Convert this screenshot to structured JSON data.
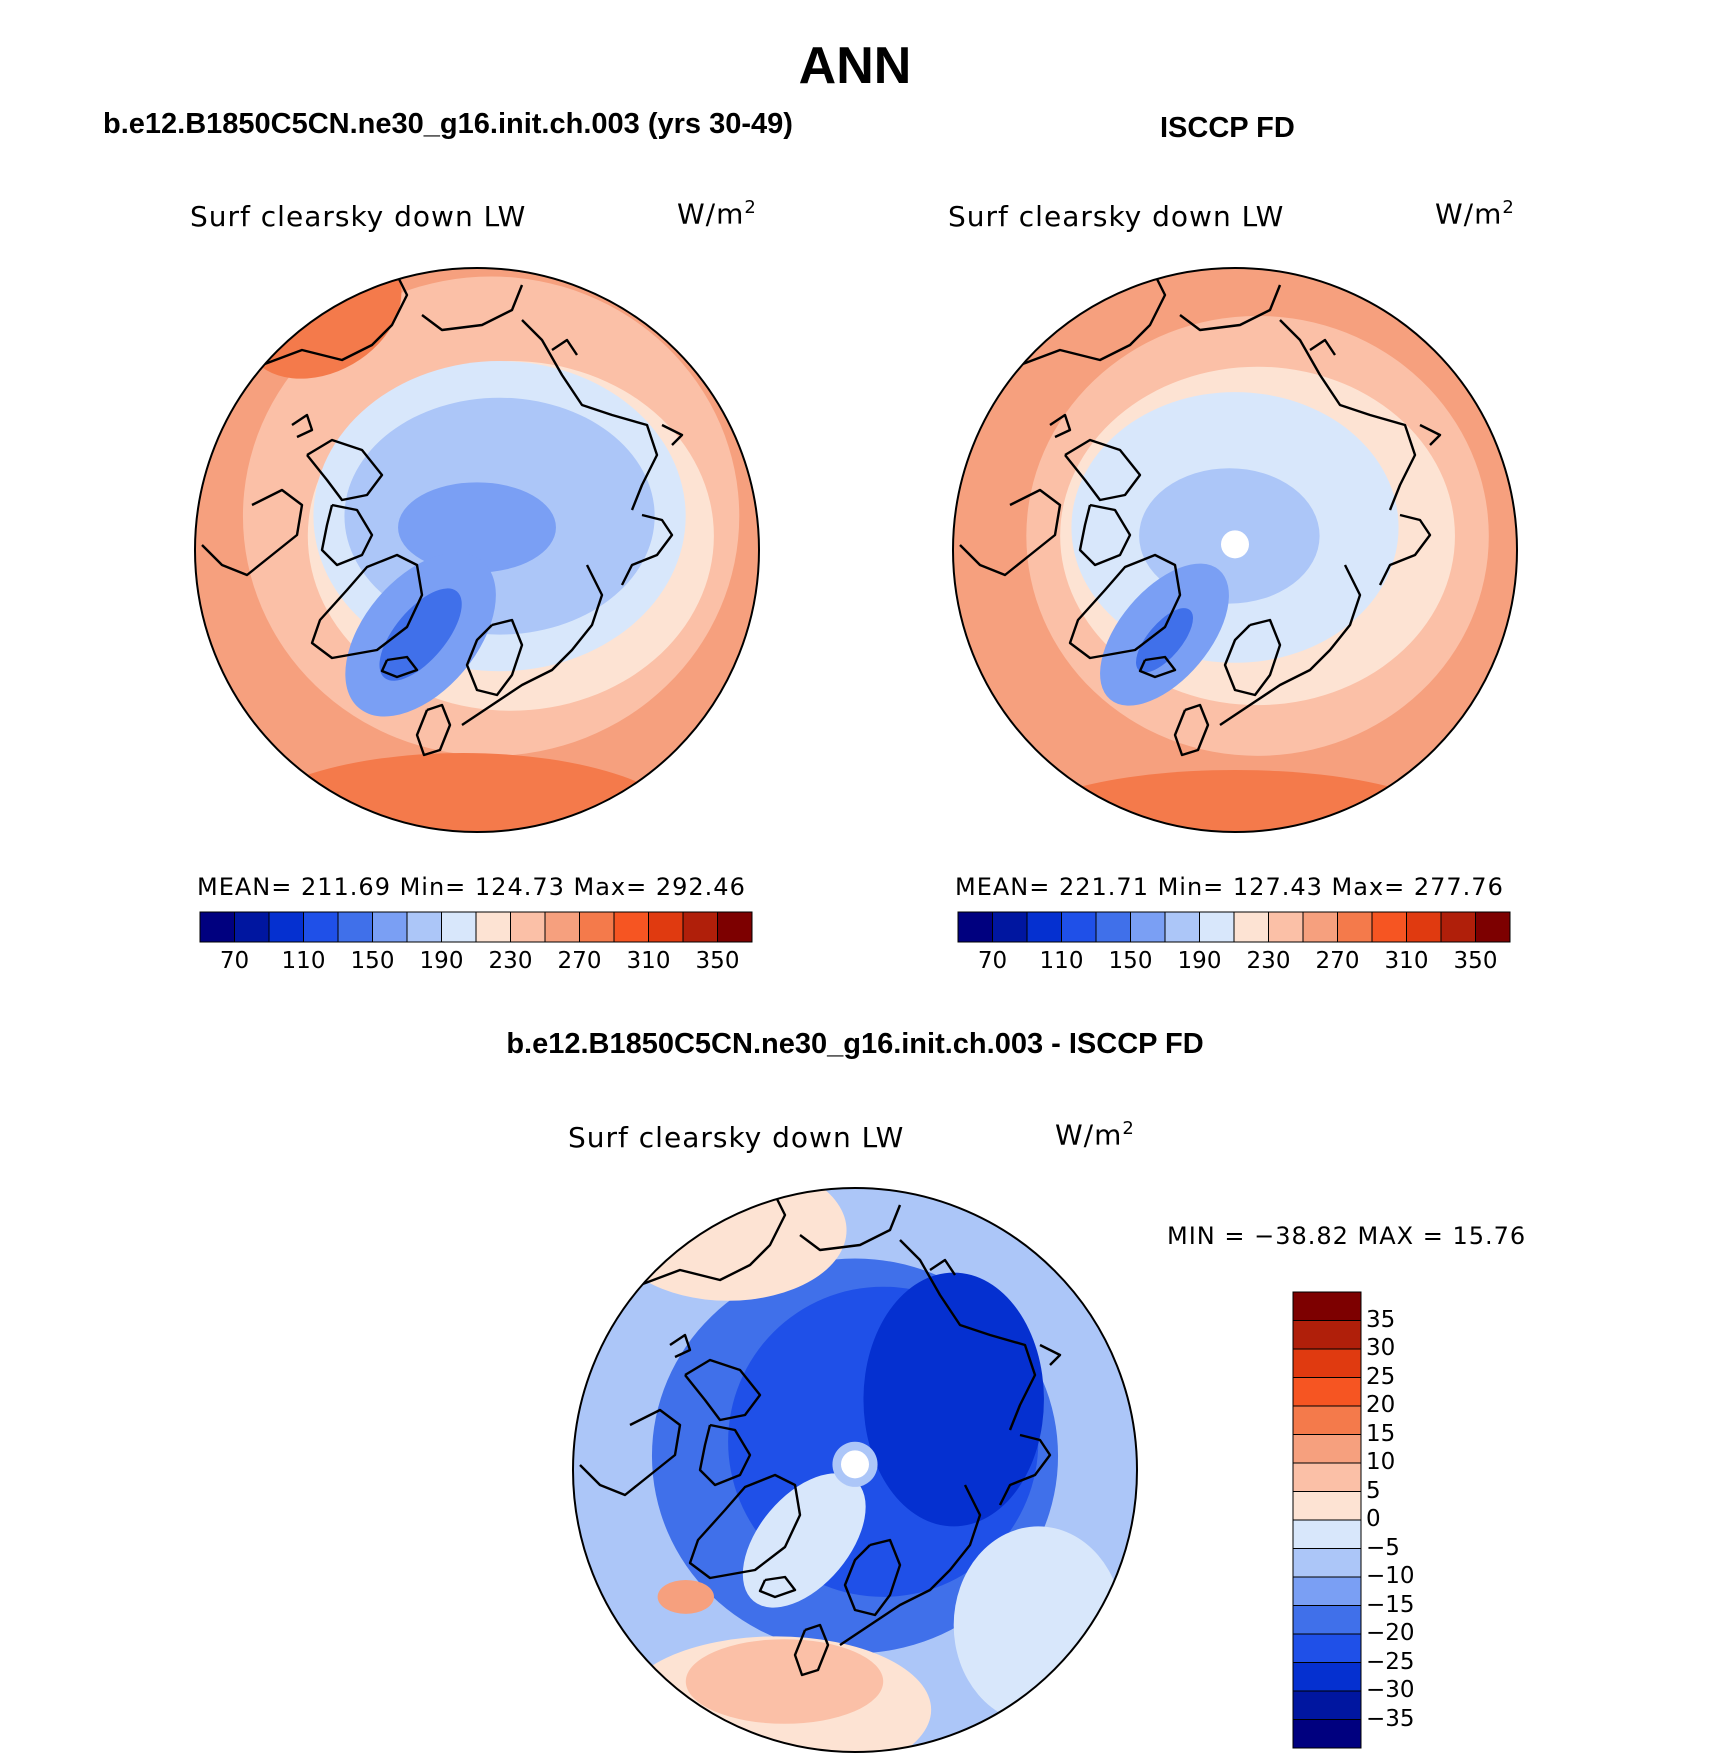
{
  "figure": {
    "season": "ANN",
    "diff_title": "b.e12.B1850C5CN.ne30_g16.init.ch.003 - ISCCP FD"
  },
  "panels": {
    "model": {
      "title": "b.e12.B1850C5CN.ne30_g16.init.ch.003 (yrs 30-49)",
      "variable": "Surf clearsky down LW",
      "units": "W/m",
      "units_exp": "2",
      "stats": "MEAN= 211.69   Min= 124.73   Max= 292.46"
    },
    "obs": {
      "title": "ISCCP FD",
      "variable": "Surf clearsky down LW",
      "units": "W/m",
      "units_exp": "2",
      "stats": "MEAN= 221.71   Min= 127.43   Max= 277.76"
    },
    "diff": {
      "variable": "Surf clearsky down LW",
      "units": "W/m",
      "units_exp": "2",
      "stats": "MIN = −38.82 MAX =   15.76"
    }
  },
  "chart_data": [
    {
      "type": "heatmap",
      "name": "model",
      "projection": "north polar stereographic",
      "title": "Surf clearsky down LW",
      "units": "W/m2",
      "mean": 211.69,
      "min": 124.73,
      "max": 292.46,
      "levels": [
        70,
        90,
        110,
        130,
        150,
        170,
        190,
        210,
        230,
        250,
        270,
        290,
        310,
        330,
        350
      ],
      "tick_labels": [
        "70",
        "110",
        "150",
        "190",
        "230",
        "270",
        "310",
        "350"
      ]
    },
    {
      "type": "heatmap",
      "name": "obs",
      "projection": "north polar stereographic",
      "title": "Surf clearsky down LW",
      "units": "W/m2",
      "mean": 221.71,
      "min": 127.43,
      "max": 277.76,
      "levels": [
        70,
        90,
        110,
        130,
        150,
        170,
        190,
        210,
        230,
        250,
        270,
        290,
        310,
        330,
        350
      ],
      "tick_labels": [
        "70",
        "110",
        "150",
        "190",
        "230",
        "270",
        "310",
        "350"
      ]
    },
    {
      "type": "heatmap",
      "name": "difference",
      "projection": "north polar stereographic",
      "title": "Surf clearsky down LW",
      "units": "W/m2",
      "min": -38.82,
      "max": 15.76,
      "levels": [
        -35,
        -30,
        -25,
        -20,
        -15,
        -10,
        -5,
        0,
        5,
        10,
        15,
        20,
        25,
        30,
        35
      ],
      "tick_labels": [
        "35",
        "30",
        "25",
        "20",
        "15",
        "10",
        "5",
        "0",
        "−5",
        "−10",
        "−15",
        "−20",
        "−25",
        "−30",
        "−35"
      ]
    }
  ],
  "colors": {
    "scale16": [
      "#00007f",
      "#0016a0",
      "#0530d0",
      "#1f50e8",
      "#4070ea",
      "#7a9ff4",
      "#acc6f8",
      "#d8e7fb",
      "#fde3d3",
      "#fbc0a7",
      "#f6a07e",
      "#f47a4b",
      "#f65522",
      "#e03a10",
      "#b01f0a",
      "#7d0000"
    ],
    "coast": "#000000"
  },
  "icons": {
    "pole_hole": "white-dot"
  }
}
